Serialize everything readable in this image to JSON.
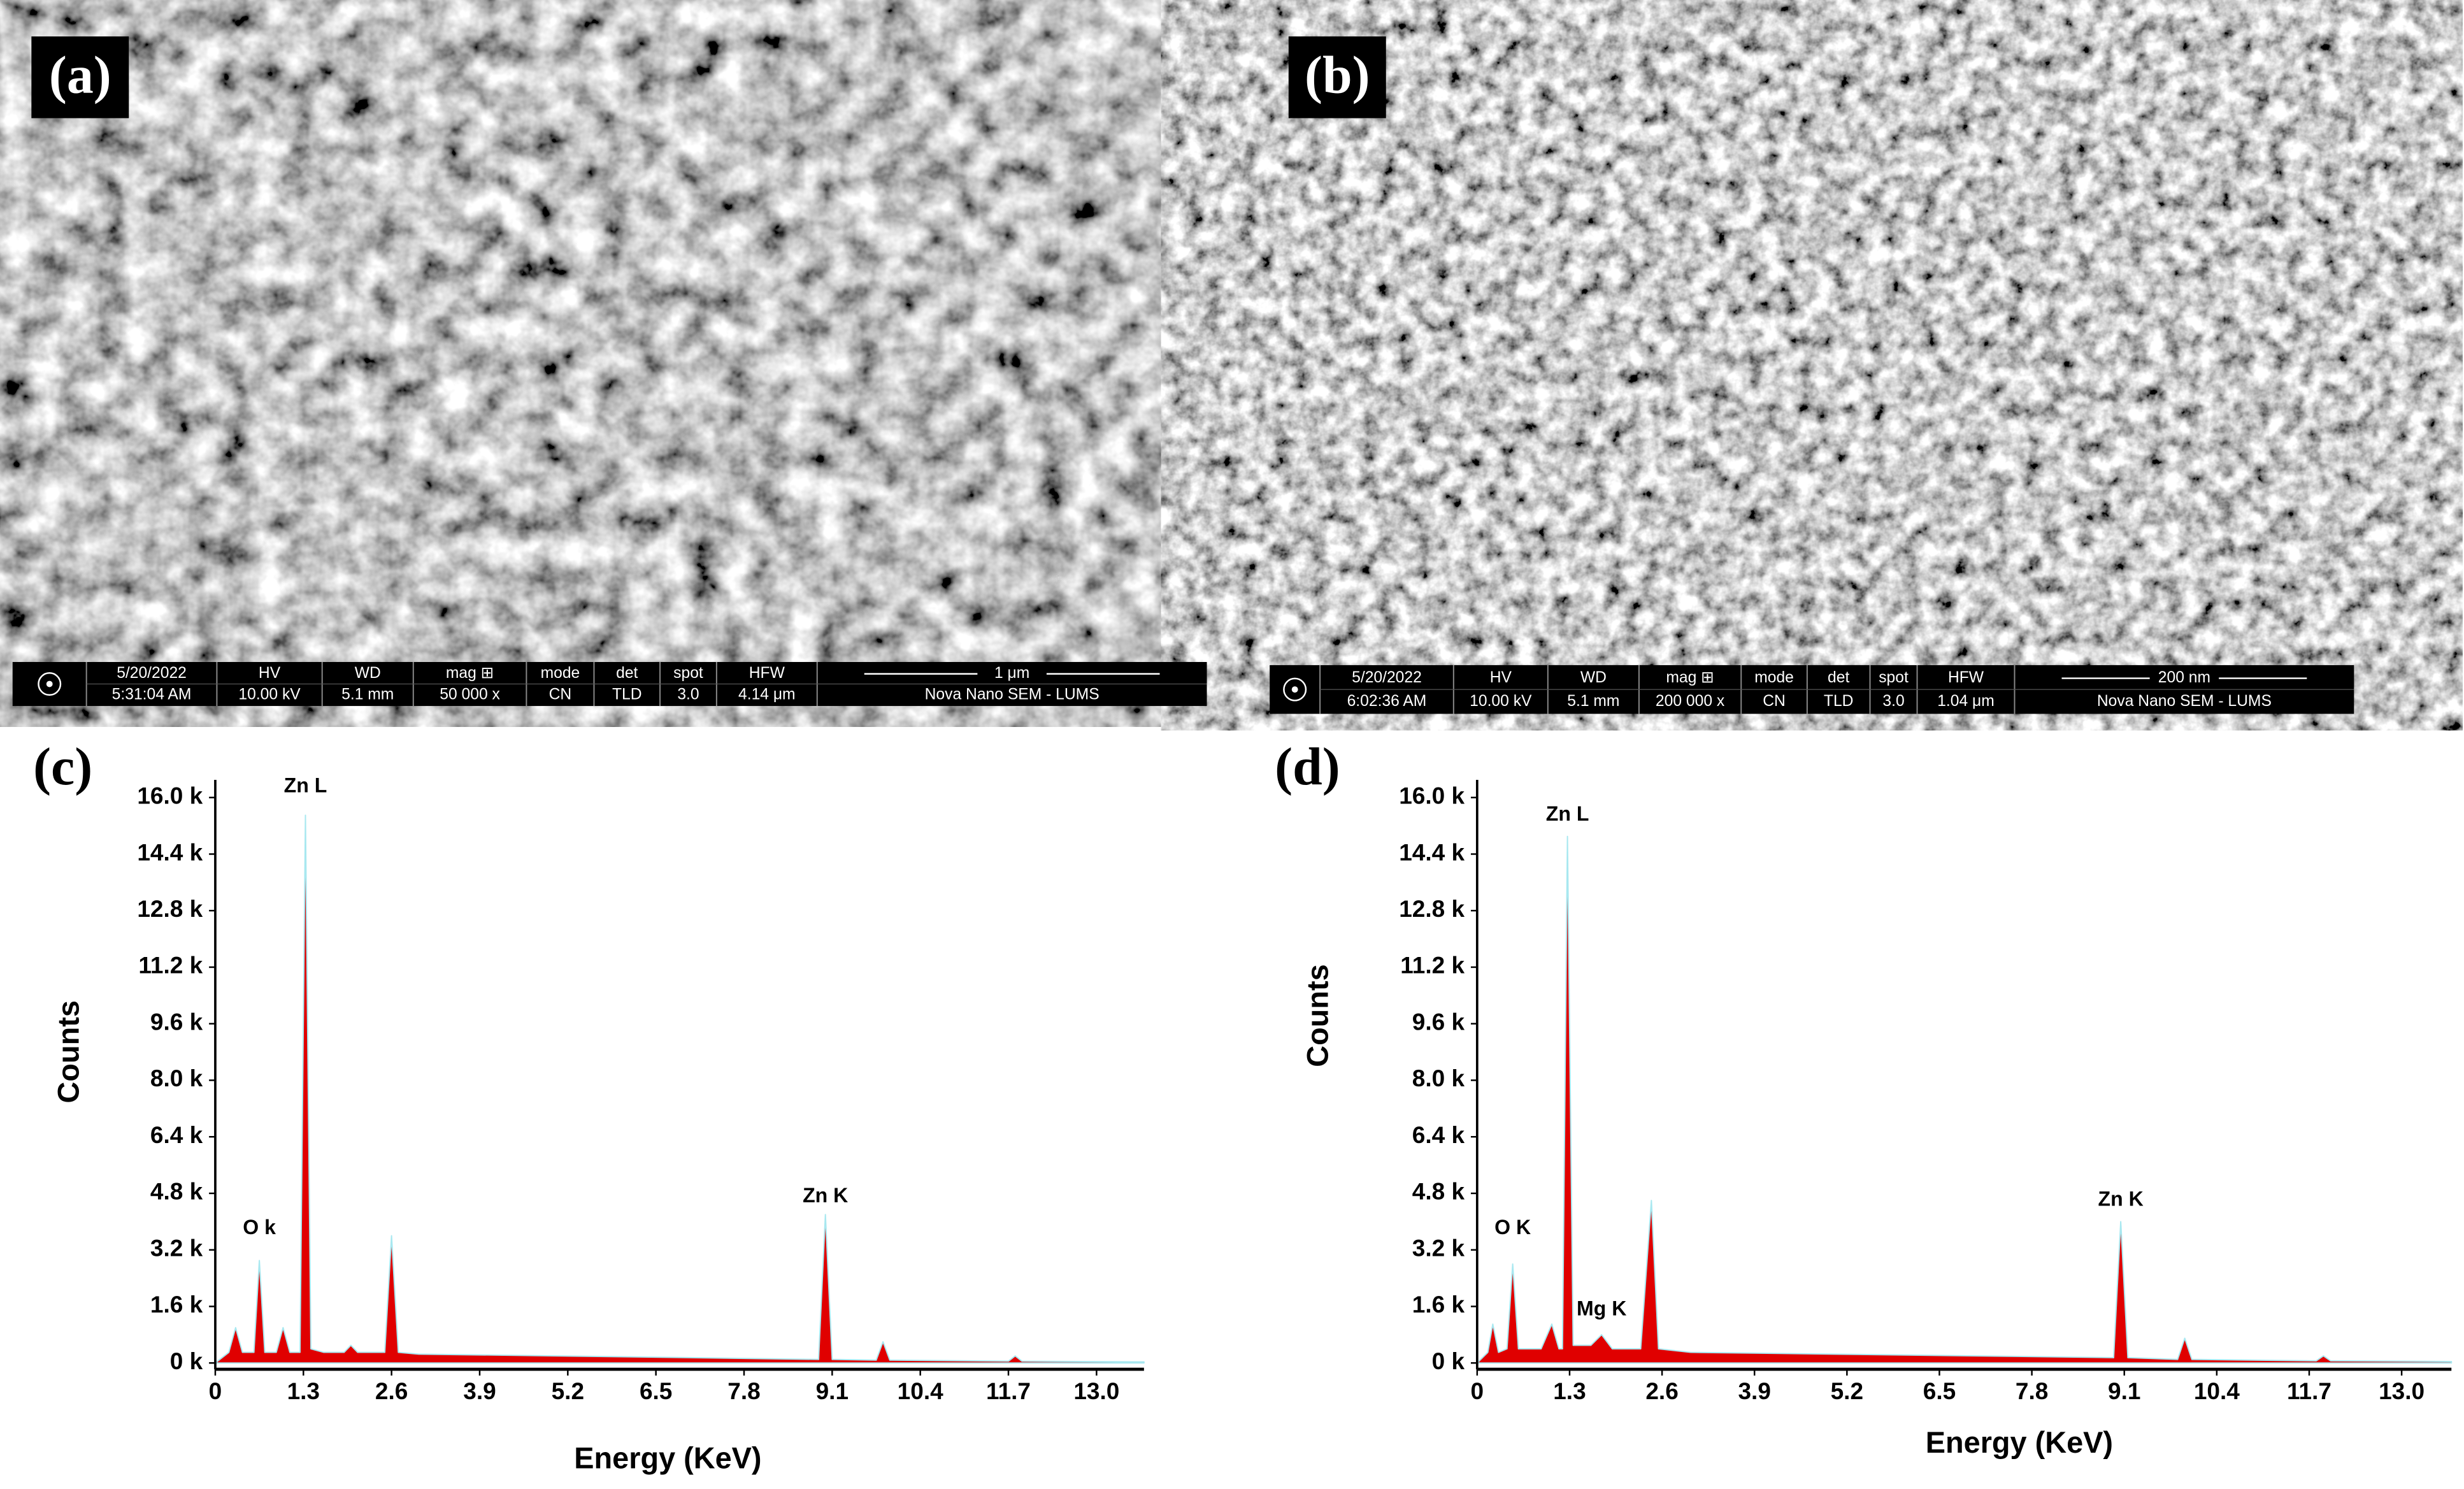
{
  "panels": [
    {
      "label": "(a)",
      "info_bar": {
        "top": [
          "5/20/2022",
          "HV",
          "WD",
          "mag ⊞",
          "mode",
          "det",
          "spot",
          "HFW"
        ],
        "bottom": [
          "5:31:04 AM",
          "10.00 kV",
          "5.1 mm",
          "50 000 x",
          "CN",
          "TLD",
          "3.0",
          "4.14 μm"
        ],
        "scale": "1 μm",
        "instrument": "Nova Nano SEM - LUMS"
      }
    },
    {
      "label": "(b)",
      "info_bar": {
        "top": [
          "5/20/2022",
          "HV",
          "WD",
          "mag ⊞",
          "mode",
          "det",
          "spot",
          "HFW"
        ],
        "bottom": [
          "6:02:36 AM",
          "10.00 kV",
          "5.1 mm",
          "200 000 x",
          "CN",
          "TLD",
          "3.0",
          "1.04 μm"
        ],
        "scale": "200 nm",
        "instrument": "Nova Nano SEM - LUMS"
      }
    }
  ],
  "chart_data": [
    {
      "type": "area",
      "panel_label": "(c)",
      "xlabel": "Energy (KeV)",
      "ylabel": "Counts",
      "color": "#e00000",
      "edge_color": "#a8e8f0",
      "x": [
        0,
        0.2,
        0.3,
        0.4,
        0.57,
        0.65,
        0.73,
        0.9,
        1.0,
        1.1,
        1.25,
        1.33,
        1.41,
        1.6,
        1.9,
        2.0,
        2.1,
        2.5,
        2.6,
        2.7,
        3.0,
        5.0,
        7.0,
        8.9,
        9.0,
        9.1,
        9.75,
        9.85,
        9.95,
        11.7,
        11.8,
        11.9,
        13.7
      ],
      "values": [
        0,
        300,
        1000,
        300,
        300,
        2900,
        300,
        300,
        1000,
        300,
        300,
        15500,
        400,
        300,
        300,
        500,
        300,
        300,
        3600,
        300,
        250,
        200,
        150,
        100,
        4200,
        100,
        80,
        600,
        80,
        50,
        200,
        50,
        30
      ],
      "xlim": [
        0,
        13.7
      ],
      "ylim": [
        0,
        16500
      ],
      "xticks": [
        0,
        1.3,
        2.6,
        3.9,
        5.2,
        6.5,
        7.8,
        9.1,
        10.4,
        11.7,
        {
          "value": 13,
          "label": "13.0"
        }
      ],
      "yticks": [
        {
          "value": 0,
          "label": "0 k"
        },
        {
          "value": 1600,
          "label": "1.6 k"
        },
        {
          "value": 3200,
          "label": "3.2 k"
        },
        {
          "value": 4800,
          "label": "4.8 k"
        },
        {
          "value": 6400,
          "label": "6.4 k"
        },
        {
          "value": 8000,
          "label": "8.0 k"
        },
        {
          "value": 9600,
          "label": "9.6 k"
        },
        {
          "value": 11200,
          "label": "11.2 k"
        },
        {
          "value": 12800,
          "label": "12.8 k"
        },
        {
          "value": 14400,
          "label": "14.4 k"
        },
        {
          "value": 16000,
          "label": "16.0 k"
        }
      ],
      "annotations": [
        {
          "text": "Zn L",
          "x": 1.33,
          "y": 16300
        },
        {
          "text": "O k",
          "x": 0.65,
          "y": 3800
        },
        {
          "text": "Zn K",
          "x": 9.0,
          "y": 4700
        }
      ]
    },
    {
      "type": "area",
      "panel_label": "(d)",
      "xlabel": "Energy (KeV)",
      "ylabel": "Counts",
      "color": "#e00000",
      "edge_color": "#a8e8f0",
      "x": [
        0,
        0.15,
        0.22,
        0.3,
        0.42,
        0.5,
        0.58,
        0.9,
        1.05,
        1.15,
        1.2,
        1.27,
        1.35,
        1.6,
        1.75,
        1.9,
        2.3,
        2.45,
        2.55,
        3.0,
        5.0,
        7.0,
        8.95,
        9.05,
        9.15,
        9.85,
        9.95,
        10.05,
        11.8,
        11.9,
        12.0,
        13.7
      ],
      "values": [
        0,
        300,
        1100,
        300,
        400,
        2800,
        400,
        400,
        1100,
        400,
        400,
        14900,
        500,
        500,
        800,
        400,
        400,
        4600,
        400,
        300,
        250,
        200,
        150,
        4000,
        150,
        100,
        700,
        100,
        60,
        200,
        60,
        40
      ],
      "xlim": [
        0,
        13.7
      ],
      "ylim": [
        0,
        16500
      ],
      "xticks": [
        0,
        1.3,
        2.6,
        3.9,
        5.2,
        6.5,
        7.8,
        9.1,
        10.4,
        11.7,
        {
          "value": 13,
          "label": "13.0"
        }
      ],
      "yticks": [
        {
          "value": 0,
          "label": "0 k"
        },
        {
          "value": 1600,
          "label": "1.6 k"
        },
        {
          "value": 3200,
          "label": "3.2 k"
        },
        {
          "value": 4800,
          "label": "4.8 k"
        },
        {
          "value": 6400,
          "label": "6.4 k"
        },
        {
          "value": 8000,
          "label": "8.0 k"
        },
        {
          "value": 9600,
          "label": "9.6 k"
        },
        {
          "value": 11200,
          "label": "11.2 k"
        },
        {
          "value": 12800,
          "label": "12.8 k"
        },
        {
          "value": 14400,
          "label": "14.4 k"
        },
        {
          "value": 16000,
          "label": "16.0 k"
        }
      ],
      "annotations": [
        {
          "text": "Zn L",
          "x": 1.27,
          "y": 15500
        },
        {
          "text": "O K",
          "x": 0.5,
          "y": 3800
        },
        {
          "text": "Mg K",
          "x": 1.75,
          "y": 1500
        },
        {
          "text": "Zn K",
          "x": 9.05,
          "y": 4600
        }
      ]
    }
  ]
}
